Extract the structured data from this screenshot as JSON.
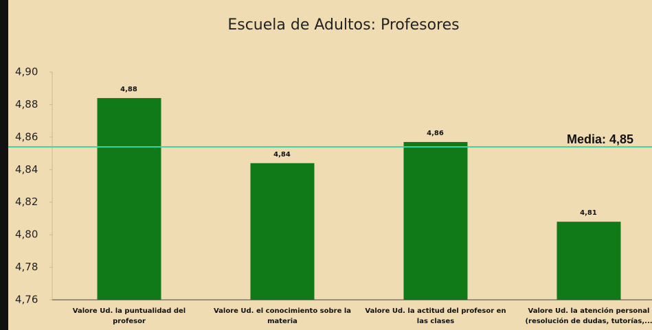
{
  "chart_data": {
    "type": "bar",
    "title": "Escuela de Adultos: Profesores",
    "categories": [
      "Valore Ud. la puntualidad del profesor",
      "Valore Ud. el conocimiento sobre la materia",
      "Valore Ud. la actitud del profesor en las clases",
      "Valore Ud. la atención personal (resolución de dudas, tutorías,..."
    ],
    "values": [
      4.884,
      4.844,
      4.857,
      4.808
    ],
    "value_labels": [
      "4,88",
      "4,84",
      "4,86",
      "4,81"
    ],
    "color": "#0f7a17",
    "ylim": [
      4.76,
      4.9
    ],
    "yticks": [
      {
        "value": 4.76,
        "label": "4,76"
      },
      {
        "value": 4.78,
        "label": "4,78"
      },
      {
        "value": 4.8,
        "label": "4,80"
      },
      {
        "value": 4.82,
        "label": "4,82"
      },
      {
        "value": 4.84,
        "label": "4,84"
      },
      {
        "value": 4.86,
        "label": "4,86"
      },
      {
        "value": 4.88,
        "label": "4,88"
      },
      {
        "value": 4.9,
        "label": "4,90"
      }
    ],
    "reference_line": {
      "value": 4.854,
      "label": "Media: 4,85",
      "color": "#3fd3a0"
    },
    "grid": false
  }
}
